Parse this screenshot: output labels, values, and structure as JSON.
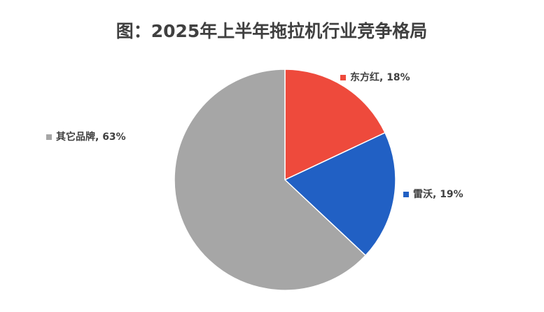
{
  "chart_data": {
    "type": "pie",
    "title": "图：2025年上半年拖拉机行业竞争格局",
    "values": [
      18,
      19,
      63
    ],
    "value_labels": [
      "东方红, 18%",
      "雷沃, 19%",
      "其它品牌, 63%"
    ],
    "colors": [
      "#ee4a3c",
      "#2160c4",
      "#a6a6a6"
    ]
  }
}
